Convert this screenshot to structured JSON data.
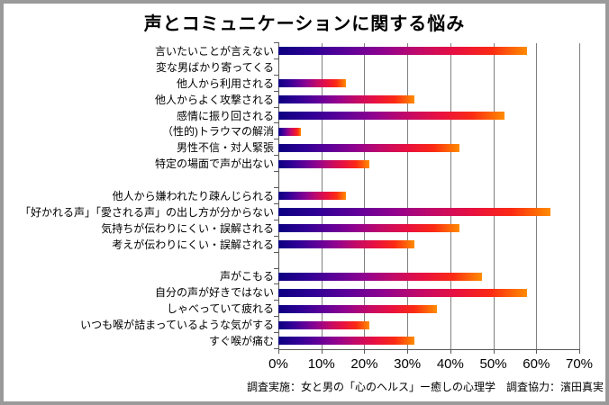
{
  "title": "声とコミュニケーションに関する悩み",
  "footer": "調査実施：女と男の「心のヘルス」ー癒しの心理学　調査協力：濱田真実",
  "chart_data": {
    "type": "bar",
    "orientation": "horizontal",
    "title": "声とコミュニケーションに関する悩み",
    "categories": [
      "言いたいことが言えない",
      "変な男ばかり寄ってくる",
      "他人から利用される",
      "他人からよく攻撃される",
      "感情に振り回される",
      "（性的)トラウマの解消",
      "男性不信・対人緊張",
      "特定の場面で声が出ない",
      "他人から嫌われたり疎んじられる",
      "「好かれる声」「愛される声」の出し方が分からない",
      "気持ちが伝わりにくい・誤解される",
      "考えが伝わりにくい・誤解される",
      "声がこもる",
      "自分の声が好きではない",
      "しゃべっていて疲れる",
      "いつも喉が詰まっているような気がする",
      "すぐ喉が痛む"
    ],
    "values": [
      57.9,
      0,
      15.8,
      31.6,
      52.6,
      5.3,
      42.1,
      21.1,
      15.8,
      63.2,
      42.1,
      31.6,
      47.4,
      57.9,
      36.8,
      21.1,
      31.6
    ],
    "group_breaks": [
      8,
      12
    ],
    "x_ticks": [
      "0%",
      "10%",
      "20%",
      "30%",
      "40%",
      "50%",
      "60%",
      "70%"
    ],
    "xlim": [
      0,
      70
    ],
    "grid": true,
    "gridline_color": "#808080",
    "axis_color": "#595959",
    "bar_gradient": [
      "#0d0080",
      "#2f0095",
      "#5f0099",
      "#92038e",
      "#c30a67",
      "#e81040",
      "#fb2a14",
      "#ff8c00"
    ]
  }
}
